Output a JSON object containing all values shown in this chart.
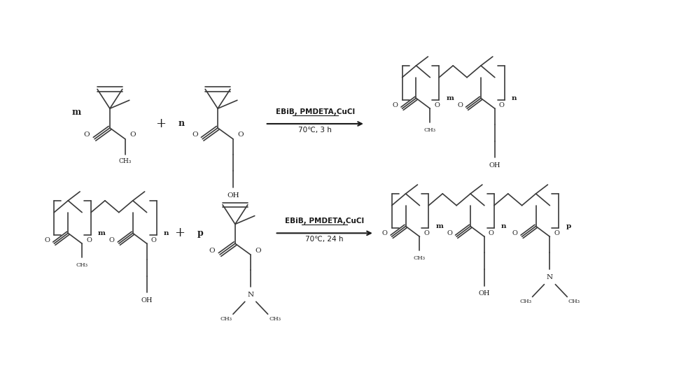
{
  "background_color": "#ffffff",
  "line_color": "#3a3a3a",
  "text_color": "#1a1a1a",
  "arrow_color": "#1a1a1a",
  "reaction1_arrow_text_line1": "EBiB, PMDETA,CuCl",
  "reaction1_arrow_text_line2": "70℃, 3 h",
  "reaction2_arrow_text_line1": "EBiB, PMDETA,CuCl",
  "reaction2_arrow_text_line2": "70℃, 24 h",
  "font_size_label": 9,
  "font_size_atom": 8,
  "font_size_arrow": 7.5
}
